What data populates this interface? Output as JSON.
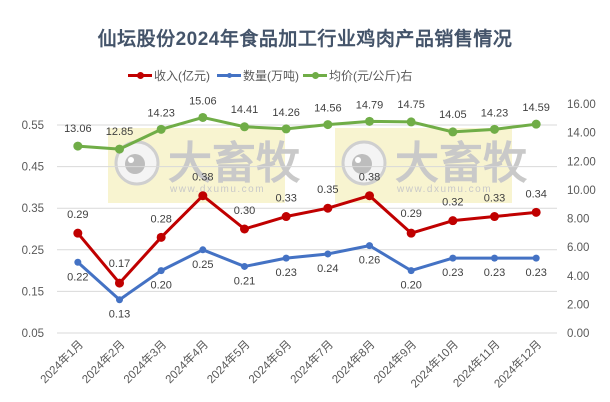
{
  "chart": {
    "title": "仙坛股份2024年食品加工行业鸡肉产品销售情况"
  },
  "legend": [
    {
      "label": "收入(亿元)",
      "color": "#c00000"
    },
    {
      "label": "数量(万吨)",
      "color": "#4472c4"
    },
    {
      "label": "均价(元/公斤)右",
      "color": "#70ad47"
    }
  ],
  "watermark": {
    "text": "大畜牧",
    "url": "www.dxumu.com"
  },
  "chart_data": {
    "type": "line",
    "title": "仙坛股份2024年食品加工行业鸡肉产品销售情况",
    "xlabel": "",
    "ylabel": "",
    "categories": [
      "2024年1月",
      "2024年2月",
      "2024年3月",
      "2024年4月",
      "2024年5月",
      "2024年6月",
      "2024年7月",
      "2024年8月",
      "2024年9月",
      "2024年10月",
      "2024年11月",
      "2024年12月"
    ],
    "series": [
      {
        "name": "收入(亿元)",
        "axis": "left",
        "color": "#c00000",
        "values": [
          0.29,
          0.17,
          0.28,
          0.38,
          0.3,
          0.33,
          0.35,
          0.38,
          0.29,
          0.32,
          0.33,
          0.34
        ]
      },
      {
        "name": "数量(万吨)",
        "axis": "left",
        "color": "#4472c4",
        "values": [
          0.22,
          0.13,
          0.2,
          0.25,
          0.21,
          0.23,
          0.24,
          0.26,
          0.2,
          0.23,
          0.23,
          0.23
        ]
      },
      {
        "name": "均价(元/公斤)右",
        "axis": "right",
        "color": "#70ad47",
        "values": [
          13.06,
          12.85,
          14.23,
          15.06,
          14.41,
          14.26,
          14.56,
          14.79,
          14.75,
          14.05,
          14.23,
          14.59
        ]
      }
    ],
    "left_axis": {
      "ticks": [
        "0.55",
        "0.45",
        "0.35",
        "0.25",
        "0.15",
        "0.05"
      ],
      "ylim": [
        0.05,
        0.6
      ]
    },
    "right_axis": {
      "ticks": [
        "16.00",
        "14.00",
        "12.00",
        "10.00",
        "8.00",
        "6.00",
        "4.00",
        "2.00",
        "0.00"
      ],
      "ylim": [
        0,
        16
      ]
    },
    "grid": true,
    "legend_position": "top"
  }
}
